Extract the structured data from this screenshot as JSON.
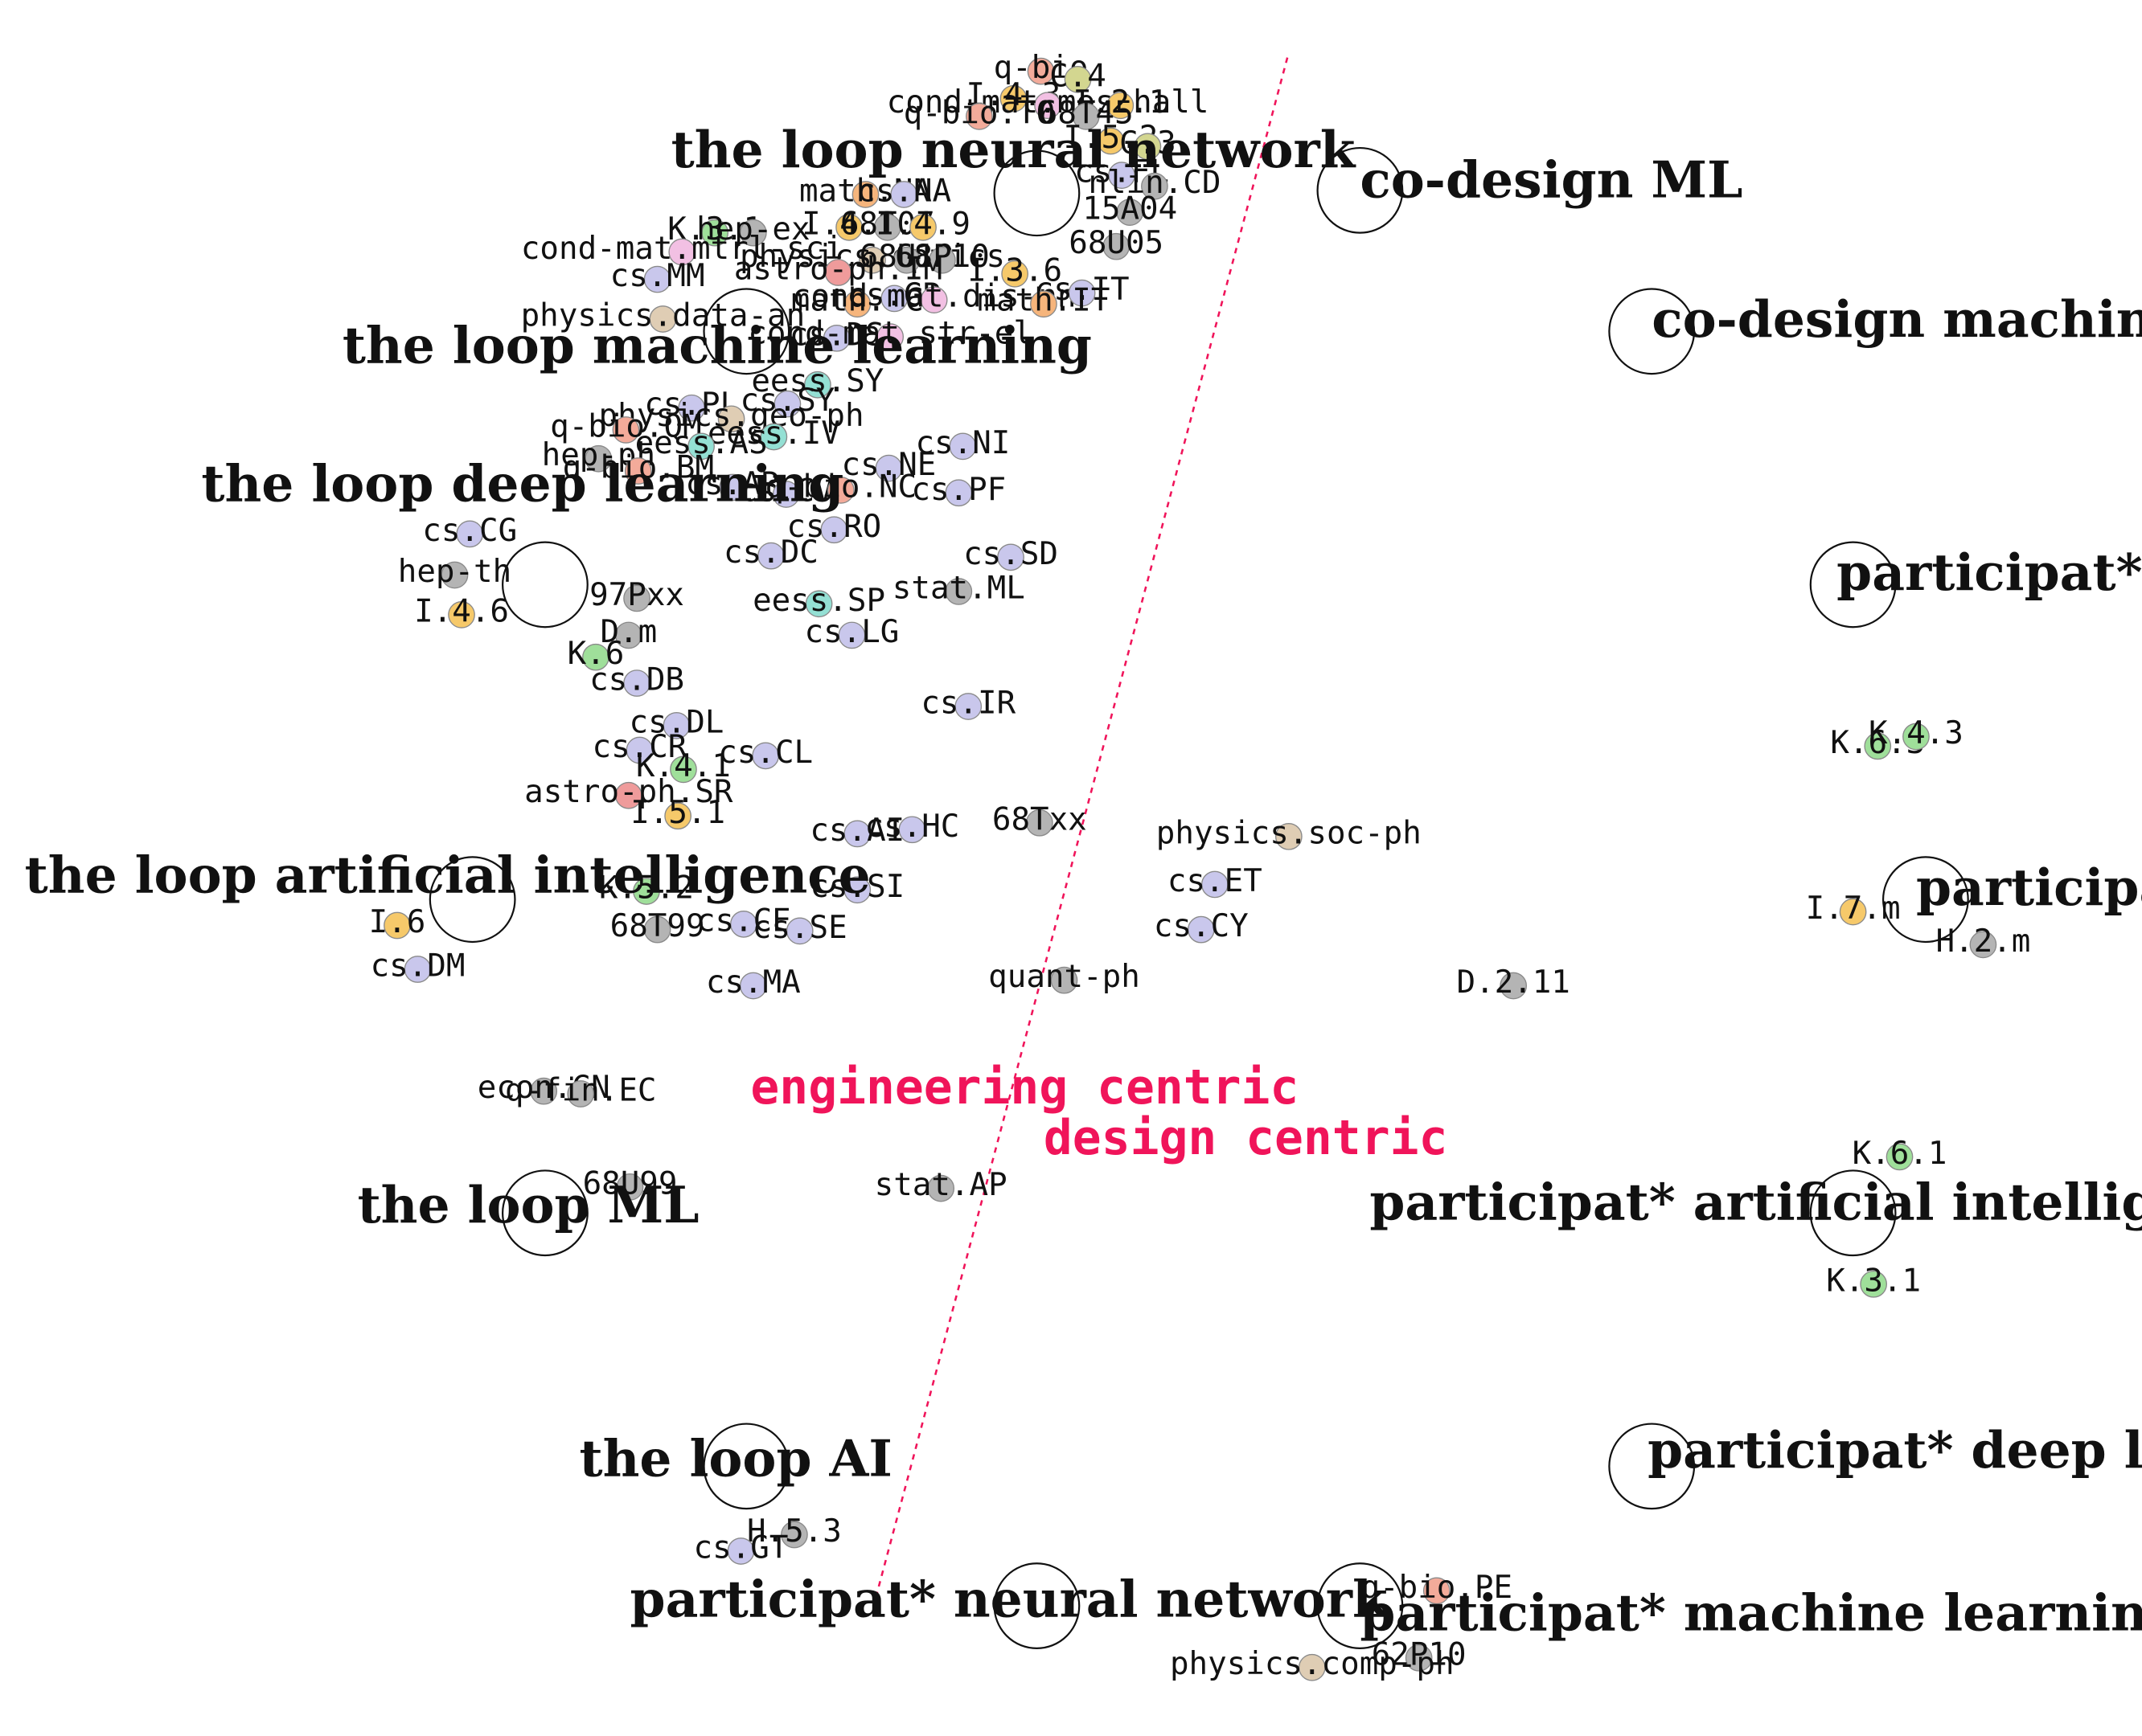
{
  "chart_data": {
    "type": "scatter",
    "title": "",
    "xlabel": "",
    "ylabel": "",
    "xlim": [
      0,
      1564
    ],
    "ylim": [
      0,
      1268
    ],
    "grid": false,
    "colors": {
      "cs": "#c9c7ec",
      "gray": "#b4b4b4",
      "yellow": "#f6c96a",
      "green": "#9fdf9a",
      "pink": "#f2c0e3",
      "salmon": "#f3ab9a",
      "red": "#ef9b9b",
      "teal": "#94e0d4",
      "tan": "#dfcdb4",
      "orange": "#f6b57c",
      "olive": "#d3d690",
      "divider": "#f0145a"
    },
    "divider": {
      "x1": 940,
      "y1": 42,
      "x2": 640,
      "y2": 1165
    },
    "annotations": [
      {
        "text": "engineering centric",
        "x": 548,
        "y": 806
      },
      {
        "text": "design centric",
        "x": 762,
        "y": 843
      }
    ],
    "queries": [
      {
        "label": "the loop neural network",
        "x": 757,
        "y": 141,
        "lx": 490,
        "ly": 122
      },
      {
        "label": "the loop machine learning",
        "x": 545,
        "y": 242,
        "lx": 250,
        "ly": 265
      },
      {
        "label": "the loop deep learning",
        "x": 398,
        "y": 427,
        "lx": 147,
        "ly": 366
      },
      {
        "label": "the loop artificial intelligence",
        "x": 345,
        "y": 657,
        "lx": 18,
        "ly": 652
      },
      {
        "label": "the loop ML",
        "x": 398,
        "y": 886,
        "lx": 261,
        "ly": 893
      },
      {
        "label": "the loop AI",
        "x": 545,
        "y": 1071,
        "lx": 423,
        "ly": 1078
      },
      {
        "label": "participat* neural network",
        "x": 757,
        "y": 1173,
        "lx": 460,
        "ly": 1181
      },
      {
        "label": "co-design ML",
        "x": 993,
        "y": 139,
        "lx": 993,
        "ly": 144
      },
      {
        "label": "co-design machine learning",
        "x": 1206,
        "y": 242,
        "lx": 1206,
        "ly": 246
      },
      {
        "label": "participat* AI",
        "x": 1353,
        "y": 427,
        "lx": 1341,
        "ly": 431
      },
      {
        "label": "participat* ML",
        "x": 1406,
        "y": 657,
        "lx": 1399,
        "ly": 661
      },
      {
        "label": "participat* artificial intelligence",
        "x": 1353,
        "y": 886,
        "lx": 1000,
        "ly": 891
      },
      {
        "label": "participat* deep learning",
        "x": 1206,
        "y": 1071,
        "lx": 1203,
        "ly": 1072
      },
      {
        "label": "participat* machine learning",
        "x": 993,
        "y": 1173,
        "lx": 993,
        "ly": 1191
      }
    ],
    "categories": [
      {
        "label": "q-bio",
        "x": 760,
        "y": 52,
        "c": "salmon"
      },
      {
        "label": "C.4",
        "x": 787,
        "y": 58,
        "c": "olive"
      },
      {
        "label": "I.4.3",
        "x": 740,
        "y": 72,
        "c": "yellow"
      },
      {
        "label": "cond-mat.mes-hall",
        "x": 765,
        "y": 77,
        "c": "pink"
      },
      {
        "label": "I.2.1",
        "x": 818,
        "y": 77,
        "c": "yellow"
      },
      {
        "label": "q-bio.TO",
        "x": 715,
        "y": 85,
        "c": "salmon"
      },
      {
        "label": "68T45",
        "x": 793,
        "y": 85,
        "c": "gray"
      },
      {
        "label": "I.5.2",
        "x": 811,
        "y": 103,
        "c": "yellow"
      },
      {
        "label": "C.3",
        "x": 838,
        "y": 107,
        "c": "olive"
      },
      {
        "label": "cs.FL",
        "x": 819,
        "y": 128,
        "c": "cs"
      },
      {
        "label": "nlin.CD",
        "x": 843,
        "y": 136,
        "c": "gray"
      },
      {
        "label": "15A04",
        "x": 825,
        "y": 155,
        "c": "gray"
      },
      {
        "label": "68U05",
        "x": 815,
        "y": 180,
        "c": "gray"
      },
      {
        "label": "math.NA",
        "x": 632,
        "y": 142,
        "c": "orange"
      },
      {
        "label": "cs.NA",
        "x": 660,
        "y": 142,
        "c": "cs"
      },
      {
        "label": "I.4.8",
        "x": 620,
        "y": 166,
        "c": "yellow"
      },
      {
        "label": "68T07",
        "x": 648,
        "y": 166,
        "c": "gray"
      },
      {
        "label": "I.4.9",
        "x": 674,
        "y": 166,
        "c": "yellow"
      },
      {
        "label": "K.3.1",
        "x": 522,
        "y": 170,
        "c": "green"
      },
      {
        "label": "hep-ex",
        "x": 550,
        "y": 170,
        "c": "gray"
      },
      {
        "label": "cond-mat.mtrl-sci",
        "x": 498,
        "y": 184,
        "c": "pink"
      },
      {
        "label": "physics.optics",
        "x": 637,
        "y": 190,
        "c": "tan"
      },
      {
        "label": "68U10",
        "x": 662,
        "y": 190,
        "c": "gray"
      },
      {
        "label": "68P10",
        "x": 688,
        "y": 190,
        "c": "gray"
      },
      {
        "label": "astro-ph.IM",
        "x": 612,
        "y": 199,
        "c": "red"
      },
      {
        "label": "cs.MM",
        "x": 480,
        "y": 204,
        "c": "cs"
      },
      {
        "label": "I.3.6",
        "x": 741,
        "y": 200,
        "c": "yellow"
      },
      {
        "label": "math.OC",
        "x": 626,
        "y": 222,
        "c": "orange"
      },
      {
        "label": "cs.GR",
        "x": 653,
        "y": 218,
        "c": "cs"
      },
      {
        "label": "cond-mat.dis-nn",
        "x": 682,
        "y": 219,
        "c": "pink"
      },
      {
        "label": "cs.IT",
        "x": 790,
        "y": 214,
        "c": "cs"
      },
      {
        "label": "math.IT",
        "x": 762,
        "y": 222,
        "c": "orange"
      },
      {
        "label": "physics.data-an",
        "x": 484,
        "y": 233,
        "c": "tan"
      },
      {
        "label": "cs.DS",
        "x": 611,
        "y": 247,
        "c": "cs"
      },
      {
        "label": "cond-mat.str-el",
        "x": 650,
        "y": 246,
        "c": "pink"
      },
      {
        "label": "eess.SY",
        "x": 597,
        "y": 281,
        "c": "teal"
      },
      {
        "label": "cs.SY",
        "x": 575,
        "y": 295,
        "c": "cs"
      },
      {
        "label": "cs.PL",
        "x": 505,
        "y": 298,
        "c": "cs"
      },
      {
        "label": "physics.geo-ph",
        "x": 534,
        "y": 306,
        "c": "tan"
      },
      {
        "label": "q-bio.QM",
        "x": 457,
        "y": 314,
        "c": "salmon"
      },
      {
        "label": "eess.IV",
        "x": 565,
        "y": 319,
        "c": "teal"
      },
      {
        "label": "eess.AS",
        "x": 512,
        "y": 326,
        "c": "teal"
      },
      {
        "label": "hep-ph",
        "x": 437,
        "y": 335,
        "c": "gray"
      },
      {
        "label": "q-bio.BM",
        "x": 466,
        "y": 344,
        "c": "salmon"
      },
      {
        "label": "cs.NE",
        "x": 649,
        "y": 342,
        "c": "cs"
      },
      {
        "label": "cs.NI",
        "x": 703,
        "y": 326,
        "c": "cs"
      },
      {
        "label": "cs.AR",
        "x": 535,
        "y": 356,
        "c": "cs"
      },
      {
        "label": "cs.CV",
        "x": 574,
        "y": 361,
        "c": "cs"
      },
      {
        "label": "q-bio.NC",
        "x": 614,
        "y": 358,
        "c": "salmon"
      },
      {
        "label": "cs.PF",
        "x": 700,
        "y": 360,
        "c": "cs"
      },
      {
        "label": "cs.CG",
        "x": 343,
        "y": 390,
        "c": "cs"
      },
      {
        "label": "cs.RO",
        "x": 609,
        "y": 387,
        "c": "cs"
      },
      {
        "label": "cs.DC",
        "x": 563,
        "y": 406,
        "c": "cs"
      },
      {
        "label": "cs.SD",
        "x": 738,
        "y": 407,
        "c": "cs"
      },
      {
        "label": "hep-th",
        "x": 332,
        "y": 420,
        "c": "gray"
      },
      {
        "label": "stat.ML",
        "x": 700,
        "y": 432,
        "c": "gray"
      },
      {
        "label": "97Pxx",
        "x": 465,
        "y": 437,
        "c": "gray"
      },
      {
        "label": "eess.SP",
        "x": 598,
        "y": 441,
        "c": "teal"
      },
      {
        "label": "I.4.6",
        "x": 337,
        "y": 449,
        "c": "yellow"
      },
      {
        "label": "D.m",
        "x": 459,
        "y": 464,
        "c": "gray"
      },
      {
        "label": "cs.LG",
        "x": 622,
        "y": 464,
        "c": "cs"
      },
      {
        "label": "K.6",
        "x": 435,
        "y": 480,
        "c": "green"
      },
      {
        "label": "cs.DB",
        "x": 465,
        "y": 499,
        "c": "cs"
      },
      {
        "label": "cs.IR",
        "x": 707,
        "y": 516,
        "c": "cs"
      },
      {
        "label": "cs.DL",
        "x": 494,
        "y": 530,
        "c": "cs"
      },
      {
        "label": "cs.CR",
        "x": 467,
        "y": 548,
        "c": "cs"
      },
      {
        "label": "cs.CL",
        "x": 559,
        "y": 552,
        "c": "cs"
      },
      {
        "label": "K.4.1",
        "x": 499,
        "y": 562,
        "c": "green"
      },
      {
        "label": "astro-ph.SR",
        "x": 459,
        "y": 581,
        "c": "red"
      },
      {
        "label": "I.5.1",
        "x": 495,
        "y": 596,
        "c": "yellow"
      },
      {
        "label": "cs.AI",
        "x": 626,
        "y": 609,
        "c": "cs"
      },
      {
        "label": "cs.HC",
        "x": 666,
        "y": 606,
        "c": "cs"
      },
      {
        "label": "68Txx",
        "x": 759,
        "y": 601,
        "c": "gray"
      },
      {
        "label": "physics.soc-ph",
        "x": 941,
        "y": 611,
        "c": "tan"
      },
      {
        "label": "cs.ET",
        "x": 887,
        "y": 646,
        "c": "cs"
      },
      {
        "label": "K.5.2",
        "x": 472,
        "y": 651,
        "c": "green"
      },
      {
        "label": "cs.SI",
        "x": 626,
        "y": 650,
        "c": "cs"
      },
      {
        "label": "I.6",
        "x": 290,
        "y": 676,
        "c": "yellow"
      },
      {
        "label": "68T99",
        "x": 480,
        "y": 679,
        "c": "gray"
      },
      {
        "label": "cs.CE",
        "x": 543,
        "y": 675,
        "c": "cs"
      },
      {
        "label": "cs.SE",
        "x": 584,
        "y": 680,
        "c": "cs"
      },
      {
        "label": "cs.CY",
        "x": 877,
        "y": 679,
        "c": "cs"
      },
      {
        "label": "cs.DM",
        "x": 305,
        "y": 708,
        "c": "cs"
      },
      {
        "label": "quant-ph",
        "x": 777,
        "y": 716,
        "c": "gray"
      },
      {
        "label": "cs.MA",
        "x": 550,
        "y": 720,
        "c": "cs"
      },
      {
        "label": "D.2.11",
        "x": 1105,
        "y": 720,
        "c": "gray"
      },
      {
        "label": "econ.GN",
        "x": 397,
        "y": 797,
        "c": "gray"
      },
      {
        "label": "q-fin.EC",
        "x": 424,
        "y": 799,
        "c": "gray"
      },
      {
        "label": "68U99",
        "x": 460,
        "y": 867,
        "c": "gray"
      },
      {
        "label": "stat.AP",
        "x": 687,
        "y": 868,
        "c": "gray"
      },
      {
        "label": "K.6.3",
        "x": 1371,
        "y": 545,
        "c": "green"
      },
      {
        "label": "K.4.3",
        "x": 1399,
        "y": 538,
        "c": "green"
      },
      {
        "label": "I.7.m",
        "x": 1353,
        "y": 666,
        "c": "yellow"
      },
      {
        "label": "H.2.m",
        "x": 1448,
        "y": 690,
        "c": "gray"
      },
      {
        "label": "K.6.1",
        "x": 1387,
        "y": 845,
        "c": "green"
      },
      {
        "label": "K.3.1",
        "x": 1368,
        "y": 938,
        "c": "green"
      },
      {
        "label": "H.5.3",
        "x": 580,
        "y": 1121,
        "c": "gray"
      },
      {
        "label": "cs.GT",
        "x": 541,
        "y": 1133,
        "c": "cs"
      },
      {
        "label": "q-bio.PE",
        "x": 1049,
        "y": 1162,
        "c": "salmon"
      },
      {
        "label": "62P10",
        "x": 1036,
        "y": 1211,
        "c": "gray"
      },
      {
        "label": "physics.comp-ph",
        "x": 958,
        "y": 1218,
        "c": "tan"
      }
    ]
  }
}
